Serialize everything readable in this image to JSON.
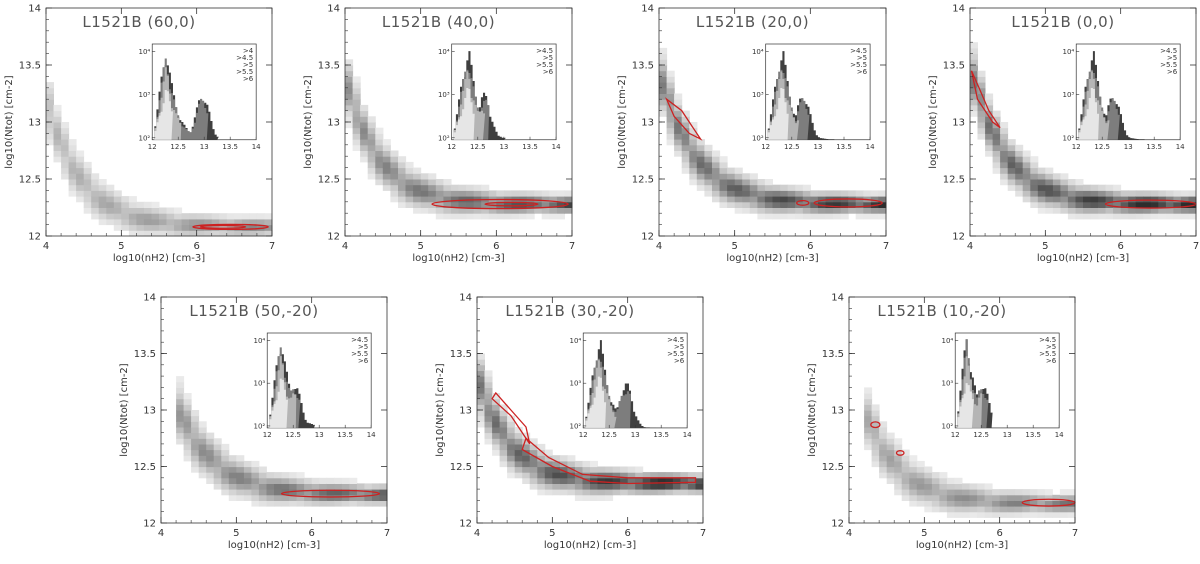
{
  "figure_title": "",
  "chart_data": [
    {
      "type": "heatmap",
      "title": "L1521B (60,0)",
      "xlabel": "log10(nH2) [cm-3]",
      "ylabel": "log10(Ntot) [cm-2]",
      "xlim": [
        4,
        7
      ],
      "ylim": [
        12,
        14
      ],
      "xticks": [
        "4",
        "5",
        "6",
        "7"
      ],
      "yticks": [
        "12",
        "12.5",
        "13",
        "13.5",
        "14"
      ],
      "band": {
        "x_start": 4.0,
        "y_start": 13.2,
        "y_floor": 12.08,
        "decay": 0.75,
        "intensity": 0.35
      },
      "contour_color": "#cc2222",
      "contours": [
        {
          "type": "ellipse",
          "cx": 6.45,
          "cy": 12.08,
          "rx": 0.5,
          "ry": 0.022
        },
        {
          "type": "ellipse",
          "cx": 6.35,
          "cy": 12.08,
          "rx": 0.3,
          "ry": 0.012
        }
      ],
      "inset": {
        "xlim": [
          12,
          14
        ],
        "xticks": [
          "12",
          "12.5",
          "13",
          "13.5",
          "14"
        ],
        "yticks": [
          "10²",
          "10³",
          "10⁴"
        ],
        "legend": [
          ">4",
          ">4.5",
          ">5",
          ">5.5",
          ">6"
        ],
        "hist": {
          "peak": 12.25,
          "second_peak": 12.95,
          "tail": 13.25
        }
      }
    },
    {
      "type": "heatmap",
      "title": "L1521B (40,0)",
      "xlabel": "log10(nH2) [cm-3]",
      "ylabel": "log10(Ntot) [cm-2]",
      "xlim": [
        4,
        7
      ],
      "ylim": [
        12,
        14
      ],
      "xticks": [
        "4",
        "5",
        "6",
        "7"
      ],
      "yticks": [
        "12",
        "12.5",
        "13",
        "13.5",
        "14"
      ],
      "band": {
        "x_start": 4.0,
        "y_start": 13.4,
        "y_floor": 12.28,
        "decay": 0.7,
        "intensity": 0.55
      },
      "contour_color": "#cc2222",
      "contours": [
        {
          "type": "ellipse",
          "cx": 6.05,
          "cy": 12.28,
          "rx": 0.9,
          "ry": 0.04
        },
        {
          "type": "ellipse",
          "cx": 6.2,
          "cy": 12.28,
          "rx": 0.35,
          "ry": 0.015
        }
      ],
      "inset": {
        "xlim": [
          12,
          14
        ],
        "xticks": [
          "12",
          "12.5",
          "13",
          "13.5",
          "14"
        ],
        "yticks": [
          "10²",
          "10³",
          "10⁴"
        ],
        "legend": [
          ">4.5",
          ">5",
          ">5.5",
          ">6"
        ],
        "hist": {
          "peak": 12.3,
          "second_peak": 12.6,
          "tail": 13.0
        }
      }
    },
    {
      "type": "heatmap",
      "title": "L1521B (20,0)",
      "xlabel": "log10(nH2) [cm-3]",
      "ylabel": "log10(Ntot) [cm-2]",
      "xlim": [
        4,
        7
      ],
      "ylim": [
        12,
        14
      ],
      "xticks": [
        "4",
        "5",
        "6",
        "7"
      ],
      "yticks": [
        "12",
        "12.5",
        "13",
        "13.5",
        "14"
      ],
      "band": {
        "x_start": 4.0,
        "y_start": 13.45,
        "y_floor": 12.28,
        "decay": 0.75,
        "intensity": 0.65
      },
      "contour_color": "#cc2222",
      "contours": [
        {
          "type": "path",
          "points": [
            [
              4.1,
              13.2
            ],
            [
              4.3,
              13.1
            ],
            [
              4.45,
              12.95
            ],
            [
              4.55,
              12.85
            ],
            [
              4.4,
              12.9
            ],
            [
              4.2,
              13.05
            ],
            [
              4.1,
              13.2
            ]
          ]
        },
        {
          "type": "ellipse",
          "cx": 6.5,
          "cy": 12.29,
          "rx": 0.45,
          "ry": 0.035
        },
        {
          "type": "ellipse",
          "cx": 5.9,
          "cy": 12.29,
          "rx": 0.08,
          "ry": 0.02
        }
      ],
      "inset": {
        "xlim": [
          12,
          14
        ],
        "xticks": [
          "12",
          "12.5",
          "13",
          "13.5",
          "14"
        ],
        "yticks": [
          "10²",
          "10³",
          "10⁴"
        ],
        "legend": [
          ">4.5",
          ">5",
          ">5.5",
          ">6"
        ],
        "hist": {
          "peak": 12.3,
          "second_peak": 12.7,
          "tail": 13.3
        }
      }
    },
    {
      "type": "heatmap",
      "title": "L1521B (0,0)",
      "xlabel": "log10(nH2) [cm-3]",
      "ylabel": "log10(Ntot) [cm-2]",
      "xlim": [
        4,
        7
      ],
      "ylim": [
        12,
        14
      ],
      "xticks": [
        "4",
        "5",
        "6",
        "7"
      ],
      "yticks": [
        "12",
        "12.5",
        "13",
        "13.5",
        "14"
      ],
      "band": {
        "x_start": 4.0,
        "y_start": 13.5,
        "y_floor": 12.28,
        "decay": 0.72,
        "intensity": 0.7
      },
      "contour_color": "#cc2222",
      "contours": [
        {
          "type": "path",
          "points": [
            [
              4.02,
              13.45
            ],
            [
              4.12,
              13.3
            ],
            [
              4.25,
              13.1
            ],
            [
              4.4,
              12.95
            ],
            [
              4.3,
              13.0
            ],
            [
              4.1,
              13.2
            ],
            [
              4.02,
              13.45
            ]
          ]
        },
        {
          "type": "ellipse",
          "cx": 6.4,
          "cy": 12.28,
          "rx": 0.6,
          "ry": 0.035
        }
      ],
      "inset": {
        "xlim": [
          12,
          14
        ],
        "xticks": [
          "12",
          "12.5",
          "13",
          "13.5",
          "14"
        ],
        "yticks": [
          "10²",
          "10³",
          "10⁴"
        ],
        "legend": [
          ">4.5",
          ">5",
          ">5.5",
          ">6"
        ],
        "hist": {
          "peak": 12.3,
          "second_peak": 12.7,
          "tail": 13.3
        }
      }
    },
    {
      "type": "heatmap",
      "title": "L1521B (50,-20)",
      "xlabel": "log10(nH2) [cm-3]",
      "ylabel": "log10(Ntot) [cm-2]",
      "xlim": [
        4,
        7
      ],
      "ylim": [
        12,
        14
      ],
      "xticks": [
        "4",
        "5",
        "6",
        "7"
      ],
      "yticks": [
        "12",
        "12.5",
        "13",
        "13.5",
        "14"
      ],
      "band": {
        "x_start": 4.2,
        "y_start": 13.05,
        "y_floor": 12.25,
        "decay": 0.8,
        "intensity": 0.5
      },
      "contour_color": "#cc2222",
      "contours": [
        {
          "type": "ellipse",
          "cx": 6.25,
          "cy": 12.26,
          "rx": 0.65,
          "ry": 0.03
        }
      ],
      "inset": {
        "xlim": [
          12,
          14
        ],
        "xticks": [
          "12",
          "12.5",
          "13",
          "13.5",
          "14"
        ],
        "yticks": [
          "10²",
          "10³",
          "10⁴"
        ],
        "legend": [
          ">4.5",
          ">5",
          ">5.5",
          ">6"
        ],
        "hist": {
          "peak": 12.25,
          "second_peak": 12.5,
          "tail": 12.9
        }
      }
    },
    {
      "type": "heatmap",
      "title": "L1521B (30,-20)",
      "xlabel": "log10(nH2) [cm-3]",
      "ylabel": "log10(Ntot) [cm-2]",
      "xlim": [
        4,
        7
      ],
      "ylim": [
        12,
        14
      ],
      "xticks": [
        "4",
        "5",
        "6",
        "7"
      ],
      "yticks": [
        "12",
        "12.5",
        "13",
        "13.5",
        "14"
      ],
      "band": {
        "x_start": 4.0,
        "y_start": 13.3,
        "y_floor": 12.35,
        "decay": 0.7,
        "intensity": 0.7
      },
      "contour_color": "#cc2222",
      "contours": [
        {
          "type": "path",
          "points": [
            [
              4.2,
              13.1
            ],
            [
              4.45,
              12.95
            ],
            [
              4.6,
              12.8
            ],
            [
              4.7,
              12.7
            ],
            [
              4.65,
              12.85
            ],
            [
              4.45,
              13.0
            ],
            [
              4.25,
              13.15
            ],
            [
              4.2,
              13.1
            ]
          ]
        },
        {
          "type": "path",
          "points": [
            [
              4.6,
              12.65
            ],
            [
              5.0,
              12.5
            ],
            [
              5.5,
              12.37
            ],
            [
              6.0,
              12.35
            ],
            [
              6.9,
              12.36
            ],
            [
              6.9,
              12.4
            ],
            [
              6.0,
              12.4
            ],
            [
              5.4,
              12.43
            ],
            [
              4.95,
              12.58
            ],
            [
              4.65,
              12.75
            ],
            [
              4.6,
              12.65
            ]
          ]
        }
      ],
      "inset": {
        "xlim": [
          12,
          14
        ],
        "xticks": [
          "12",
          "12.5",
          "13",
          "13.5",
          "14"
        ],
        "yticks": [
          "10²",
          "10³",
          "10⁴"
        ],
        "legend": [
          ">4.5",
          ">5",
          ">5.5",
          ">6"
        ],
        "hist": {
          "peak": 12.3,
          "second_peak": 12.8,
          "tail": 13.5
        }
      }
    },
    {
      "type": "heatmap",
      "title": "L1521B (10,-20)",
      "xlabel": "log10(nH2) [cm-3]",
      "ylabel": "log10(Ntot) [cm-2]",
      "xlim": [
        4,
        7
      ],
      "ylim": [
        12,
        14
      ],
      "xticks": [
        "4",
        "5",
        "6",
        "7"
      ],
      "yticks": [
        "12",
        "12.5",
        "13",
        "13.5",
        "14"
      ],
      "band": {
        "x_start": 4.2,
        "y_start": 13.0,
        "y_floor": 12.17,
        "decay": 0.75,
        "intensity": 0.4
      },
      "contour_color": "#cc2222",
      "contours": [
        {
          "type": "ellipse",
          "cx": 4.35,
          "cy": 12.87,
          "rx": 0.06,
          "ry": 0.025
        },
        {
          "type": "ellipse",
          "cx": 4.68,
          "cy": 12.62,
          "rx": 0.05,
          "ry": 0.02
        },
        {
          "type": "ellipse",
          "cx": 6.65,
          "cy": 12.18,
          "rx": 0.35,
          "ry": 0.03
        }
      ],
      "inset": {
        "xlim": [
          12,
          14
        ],
        "xticks": [
          "12",
          "12.5",
          "13",
          "13.5",
          "14"
        ],
        "yticks": [
          "10²",
          "10³",
          "10⁴"
        ],
        "legend": [
          ">4.5",
          ">5",
          ">5.5",
          ">6"
        ],
        "hist": {
          "peak": 12.2,
          "second_peak": 12.5,
          "tail": 12.7
        }
      }
    }
  ]
}
